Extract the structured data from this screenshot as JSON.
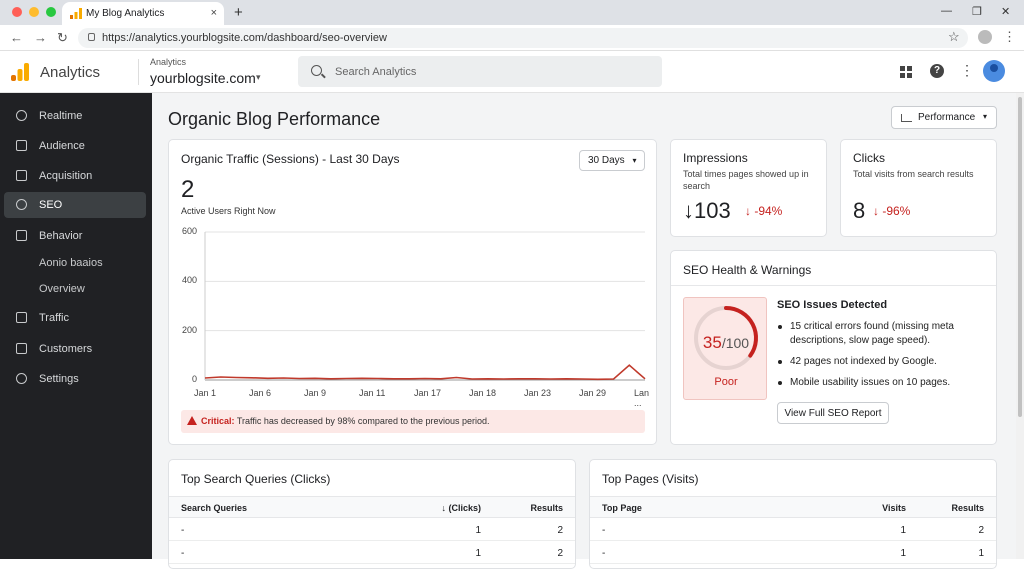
{
  "browser": {
    "tab_title": "My Blog Analytics",
    "tab_close": "×",
    "new_tab": "+",
    "url": "https://analytics.yourblogsite.com/dashboard/seo-overview",
    "win_minimize": "—",
    "win_restore": "❐",
    "win_close": "✕",
    "back": "←",
    "forward": "→",
    "reload": "↻",
    "bookmark": "☆",
    "menu": "⋮"
  },
  "header": {
    "brand": "Analytics",
    "account_label": "Analytics",
    "account_name": "yourblogsite.com",
    "account_caret": "▾",
    "search_placeholder": "Search Analytics",
    "more": "⋮",
    "help": "?"
  },
  "sidebar": {
    "items": [
      {
        "label": "Realtime",
        "icon": "clock-icon"
      },
      {
        "label": "Audience",
        "icon": "people-icon"
      },
      {
        "label": "Acquisition",
        "icon": "acquisition-icon"
      },
      {
        "label": "SEO",
        "icon": "seo-icon",
        "active": true
      },
      {
        "label": "Behavior",
        "icon": "behavior-icon"
      },
      {
        "label": "Aonio baaios"
      },
      {
        "label": "Overview"
      },
      {
        "label": "Traffic",
        "icon": "traffic-icon"
      },
      {
        "label": "Customers",
        "icon": "customers-icon"
      },
      {
        "label": "Settings",
        "icon": "gear-icon"
      }
    ]
  },
  "main": {
    "title": "Organic Blog Performance",
    "performance_button": "Performance",
    "performance_caret": "▾"
  },
  "traffic": {
    "title": "Organic Traffic (Sessions) - Last 30 Days",
    "range": "30 Days",
    "range_caret": "▾",
    "active_users": "2",
    "active_users_label": "Active Users Right Now",
    "alert_prefix": "Critical:",
    "alert_text": "Traffic has decreased by 98% compared to the previous period."
  },
  "chart_data": {
    "type": "line",
    "title": "Organic Traffic (Sessions) - Last 30 Days",
    "xlabel": "",
    "ylabel": "",
    "ylim": [
      0,
      600
    ],
    "yticks": [
      "600",
      "400",
      "200",
      "0"
    ],
    "xticks": [
      "Jan 1",
      "Jan 6",
      "Jan 9",
      "Jan 11",
      "Jan 17",
      "Jan 18",
      "Jan 23",
      "Jan 29",
      "Lan ..."
    ],
    "grid": true,
    "color": "#c0392b",
    "series": [
      {
        "values": [
          8,
          12,
          10,
          9,
          7,
          8,
          6,
          7,
          5,
          6,
          7,
          6,
          5,
          5,
          6,
          5,
          10,
          4,
          5,
          4,
          5,
          5,
          4,
          5,
          4,
          3,
          4,
          60,
          5
        ]
      }
    ]
  },
  "impressions": {
    "title": "Impressions",
    "desc": "Total times pages showed up in search",
    "arrow": "↓",
    "value": "103",
    "delta": "↓ -94%"
  },
  "clicks": {
    "title": "Clicks",
    "desc": "Total visits from search results",
    "value": "8",
    "delta": "↓ -96%"
  },
  "seo_health": {
    "title": "SEO Health & Warnings",
    "score": "35",
    "score_max": "/100",
    "score_value": 35,
    "rating": "Poor",
    "issues_title": "SEO Issues Detected",
    "issues": [
      "15 critical errors found (missing meta descriptions, slow page speed).",
      "42 pages not indexed by Google.",
      "Mobile usability issues on 10 pages."
    ],
    "report_button": "View Full SEO Report"
  },
  "queries": {
    "title": "Top Search Queries (Clicks)",
    "headers": [
      "Search Queries",
      "↓ (Clicks)",
      "Results"
    ],
    "rows": [
      [
        "-",
        "1",
        "2"
      ],
      [
        "-",
        "1",
        "2"
      ]
    ]
  },
  "pages": {
    "title": "Top Pages (Visits)",
    "headers": [
      "Top Page",
      "Visits",
      "Results"
    ],
    "rows": [
      [
        "-",
        "1",
        "2"
      ],
      [
        "-",
        "1",
        "1"
      ]
    ]
  },
  "colors": {
    "accent": "#c5221f",
    "sidebar_bg": "#202124",
    "logo_orange": "#f9ab00",
    "logo_dark": "#e37400"
  }
}
